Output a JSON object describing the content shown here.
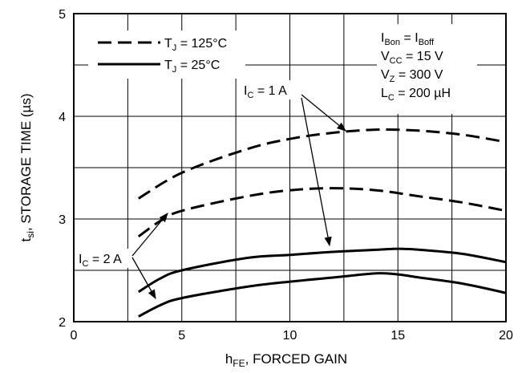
{
  "chart_data": {
    "type": "line",
    "xlabel": {
      "main": "h",
      "sub": "FE",
      "rest": ", FORCED GAIN"
    },
    "ylabel": {
      "main": "t",
      "sub": "si",
      "rest": ", STORAGE TIME (µs)"
    },
    "xlim": [
      0,
      20
    ],
    "ylim": [
      2,
      5
    ],
    "xticks": [
      0,
      5,
      10,
      15,
      20
    ],
    "yticks": [
      2,
      3,
      4,
      5
    ],
    "x_minor_step": 2.5,
    "y_minor_step": 0.5,
    "grid": true,
    "legend": {
      "placement": "top-left",
      "entries": [
        {
          "style": "dashed",
          "main": "T",
          "sub": "J",
          "rest": " = 125°C"
        },
        {
          "style": "solid",
          "main": "T",
          "sub": "J",
          "rest": " = 25°C"
        }
      ]
    },
    "conditions": [
      [
        {
          "t": "I"
        },
        {
          "t": "Bon",
          "sub": true
        },
        {
          "t": " = I"
        },
        {
          "t": "Boff",
          "sub": true
        }
      ],
      [
        {
          "t": "V"
        },
        {
          "t": "CC",
          "sub": true
        },
        {
          "t": " = 15 V"
        }
      ],
      [
        {
          "t": "V"
        },
        {
          "t": "Z",
          "sub": true
        },
        {
          "t": " = 300 V"
        }
      ],
      [
        {
          "t": "L"
        },
        {
          "t": "C",
          "sub": true
        },
        {
          "t": " = 200 µH"
        }
      ]
    ],
    "annotations": [
      {
        "main": "I",
        "sub": "C",
        "rest": " = 1 A"
      },
      {
        "main": "I",
        "sub": "C",
        "rest": " = 2 A"
      }
    ],
    "series": [
      {
        "style": "dashed",
        "x": [
          3,
          5,
          8,
          10,
          12,
          14,
          16,
          18,
          20
        ],
        "y": [
          3.2,
          3.45,
          3.68,
          3.78,
          3.84,
          3.87,
          3.86,
          3.82,
          3.75
        ]
      },
      {
        "style": "dashed",
        "x": [
          3,
          4,
          5,
          8,
          10,
          12,
          14,
          16,
          18,
          20
        ],
        "y": [
          2.83,
          2.98,
          3.08,
          3.22,
          3.28,
          3.3,
          3.28,
          3.22,
          3.16,
          3.08
        ]
      },
      {
        "style": "solid",
        "x": [
          3,
          4,
          5,
          8,
          10,
          12,
          14,
          15,
          16,
          18,
          20
        ],
        "y": [
          2.29,
          2.42,
          2.5,
          2.62,
          2.65,
          2.68,
          2.7,
          2.71,
          2.7,
          2.66,
          2.58
        ]
      },
      {
        "style": "solid",
        "x": [
          3,
          4,
          5,
          8,
          10,
          12,
          14,
          15,
          16,
          18,
          20
        ],
        "y": [
          2.05,
          2.16,
          2.23,
          2.34,
          2.39,
          2.43,
          2.47,
          2.46,
          2.43,
          2.37,
          2.28
        ]
      }
    ]
  }
}
